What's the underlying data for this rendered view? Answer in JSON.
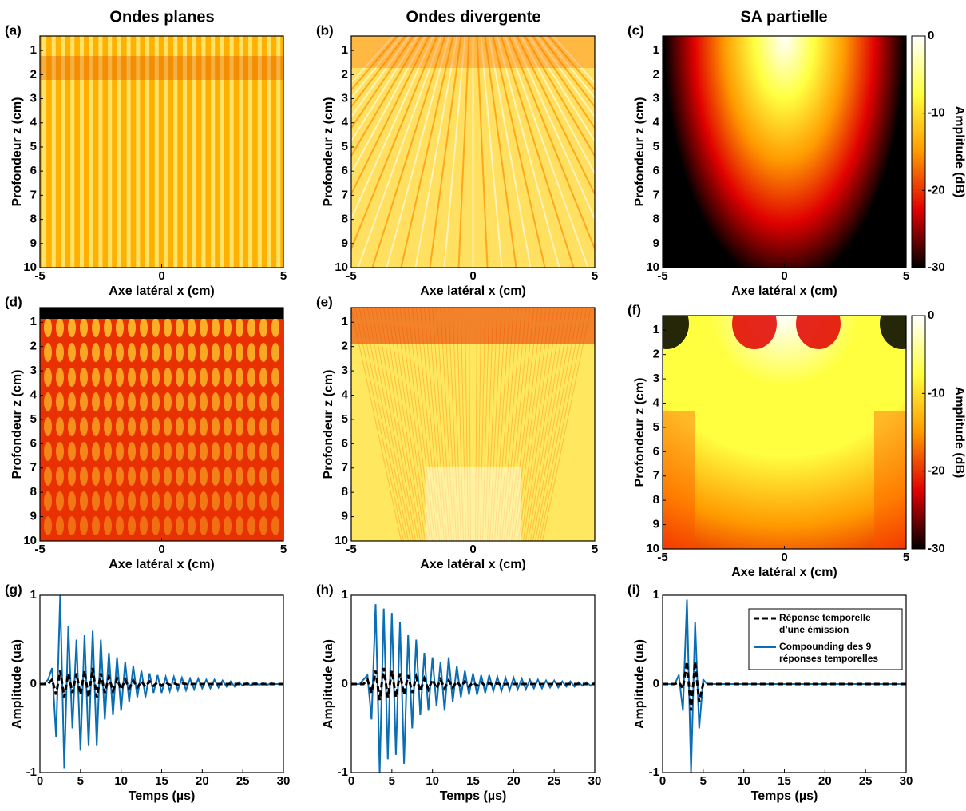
{
  "column_titles": [
    "Ondes planes",
    "Ondes divergente",
    "SA partielle"
  ],
  "chart_data": [
    {
      "type": "heatmap",
      "label": "(a)",
      "xlabel": "Axe latéral x (cm)",
      "ylabel": "Profondeur z (cm)",
      "xlim": [
        -5,
        5
      ],
      "xticks": [
        -5,
        0,
        5
      ],
      "ylim": [
        0.4,
        10
      ],
      "yticks": [
        1,
        2,
        3,
        4,
        5,
        6,
        7,
        8,
        9,
        10
      ]
    },
    {
      "type": "heatmap",
      "label": "(b)",
      "xlabel": "Axe latéral x (cm)",
      "ylabel": "Profondeur z (cm)",
      "xlim": [
        -5,
        5
      ],
      "xticks": [
        -5,
        0,
        5
      ],
      "ylim": [
        0.4,
        10
      ],
      "yticks": [
        1,
        2,
        3,
        4,
        5,
        6,
        7,
        8,
        9,
        10
      ]
    },
    {
      "type": "heatmap",
      "label": "(c)",
      "xlabel": "Axe latéral x (cm)",
      "ylabel": "Profondeur z (cm)",
      "xlim": [
        -5,
        5
      ],
      "xticks": [
        -5,
        0,
        5
      ],
      "ylim": [
        0.4,
        10
      ],
      "yticks": [
        1,
        2,
        3,
        4,
        5,
        6,
        7,
        8,
        9,
        10
      ],
      "colorbar": {
        "label": "Amplitude (dB)",
        "clim": [
          -30,
          0
        ],
        "cticks": [
          0,
          -10,
          -20,
          -30
        ],
        "colormap": [
          "#000000",
          "#e00000",
          "#ff9a00",
          "#ffff40",
          "#ffffff"
        ]
      }
    },
    {
      "type": "heatmap",
      "label": "(d)",
      "xlabel": "Axe latéral x (cm)",
      "ylabel": "Profondeur z (cm)",
      "xlim": [
        -5,
        5
      ],
      "xticks": [
        -5,
        0,
        5
      ],
      "ylim": [
        0.4,
        10
      ],
      "yticks": [
        1,
        2,
        3,
        4,
        5,
        6,
        7,
        8,
        9,
        10
      ]
    },
    {
      "type": "heatmap",
      "label": "(e)",
      "xlabel": "Axe latéral x (cm)",
      "ylabel": "Profondeur z (cm)",
      "xlim": [
        -5,
        5
      ],
      "xticks": [
        -5,
        0,
        5
      ],
      "ylim": [
        0.4,
        10
      ],
      "yticks": [
        1,
        2,
        3,
        4,
        5,
        6,
        7,
        8,
        9,
        10
      ]
    },
    {
      "type": "heatmap",
      "label": "(f)",
      "xlabel": "Axe latéral x (cm)",
      "ylabel": "Profondeur z (cm)",
      "xlim": [
        -5,
        5
      ],
      "xticks": [
        -5,
        0,
        5
      ],
      "ylim": [
        0.4,
        10
      ],
      "yticks": [
        1,
        2,
        3,
        4,
        5,
        6,
        7,
        8,
        9,
        10
      ],
      "colorbar": {
        "label": "Amplitude (dB)",
        "clim": [
          -30,
          0
        ],
        "cticks": [
          0,
          -10,
          -20,
          -30
        ],
        "colormap": [
          "#000000",
          "#e00000",
          "#ff9a00",
          "#ffff40",
          "#ffffff"
        ]
      }
    },
    {
      "type": "line",
      "label": "(g)",
      "xlabel": "Temps (µs)",
      "ylabel": "Amplitude (ua)",
      "xlim": [
        0,
        30
      ],
      "xticks": [
        0,
        5,
        10,
        15,
        20,
        25,
        30
      ],
      "ylim": [
        -1,
        1
      ],
      "yticks": [
        -1,
        0,
        1
      ],
      "x": [
        0,
        0.5,
        1,
        1.5,
        2,
        2.5,
        3,
        3.5,
        4,
        4.5,
        5,
        5.5,
        6,
        6.5,
        7,
        7.5,
        8,
        8.5,
        9,
        9.5,
        10,
        10.5,
        11,
        11.5,
        12,
        12.5,
        13,
        13.5,
        14,
        14.5,
        15,
        15.5,
        16,
        16.5,
        17,
        17.5,
        18,
        18.5,
        19,
        19.5,
        20,
        20.5,
        21,
        21.5,
        22,
        22.5,
        23,
        23.5,
        24,
        24.5,
        25,
        25.5,
        26,
        26.5,
        27,
        27.5,
        28,
        28.5,
        29,
        29.5,
        30
      ],
      "series": [
        {
          "color": "#0a6eb4",
          "linestyle": "solid",
          "values": [
            0,
            0,
            0.05,
            0.18,
            -0.6,
            1,
            -0.95,
            0.65,
            -0.5,
            0.5,
            -0.75,
            0.55,
            -0.7,
            0.6,
            -0.7,
            0.5,
            -0.4,
            0.35,
            -0.35,
            0.3,
            -0.3,
            0.25,
            -0.2,
            0.2,
            -0.15,
            0.15,
            -0.15,
            0.12,
            -0.1,
            0.1,
            -0.1,
            0.08,
            -0.08,
            0.08,
            -0.07,
            0.07,
            -0.07,
            0.06,
            -0.06,
            0.06,
            -0.05,
            0.05,
            -0.05,
            0.05,
            -0.04,
            0.04,
            -0.03,
            0.03,
            -0.03,
            0.02,
            -0.02,
            0.02,
            -0.02,
            0.02,
            -0.01,
            0.01,
            -0.01,
            0.01,
            0,
            0,
            0
          ]
        },
        {
          "color": "#000000",
          "linestyle": "dashed",
          "values": [
            0,
            0,
            0,
            0.05,
            -0.12,
            0.15,
            -0.15,
            0.12,
            -0.1,
            0.12,
            -0.12,
            0.15,
            -0.15,
            0.18,
            -0.15,
            0.12,
            -0.1,
            0.08,
            -0.08,
            0.06,
            -0.06,
            0.05,
            -0.05,
            0.04,
            -0.04,
            0.03,
            -0.03,
            0.03,
            -0.02,
            0.02,
            -0.02,
            0.02,
            -0.01,
            0.01,
            -0.01,
            0.01,
            0,
            0,
            0,
            0,
            0,
            0,
            0,
            0,
            0,
            0,
            0,
            0,
            0,
            0,
            0,
            0,
            0,
            0,
            0,
            0,
            0,
            0,
            0,
            0,
            0
          ]
        }
      ]
    },
    {
      "type": "line",
      "label": "(h)",
      "xlabel": "Temps (µs)",
      "ylabel": "Amplitude (ua)",
      "xlim": [
        0,
        30
      ],
      "xticks": [
        0,
        5,
        10,
        15,
        20,
        25,
        30
      ],
      "ylim": [
        -1,
        1
      ],
      "yticks": [
        -1,
        0,
        1
      ],
      "x": [
        0,
        0.5,
        1,
        1.5,
        2,
        2.5,
        3,
        3.5,
        4,
        4.5,
        5,
        5.5,
        6,
        6.5,
        7,
        7.5,
        8,
        8.5,
        9,
        9.5,
        10,
        10.5,
        11,
        11.5,
        12,
        12.5,
        13,
        13.5,
        14,
        14.5,
        15,
        15.5,
        16,
        16.5,
        17,
        17.5,
        18,
        18.5,
        19,
        19.5,
        20,
        20.5,
        21,
        21.5,
        22,
        22.5,
        23,
        23.5,
        24,
        24.5,
        25,
        25.5,
        26,
        26.5,
        27,
        27.5,
        28,
        28.5,
        29,
        29.5,
        30
      ],
      "series": [
        {
          "color": "#0a6eb4",
          "linestyle": "solid",
          "values": [
            0,
            0,
            0,
            0.05,
            0.1,
            -0.4,
            0.9,
            -1,
            0.85,
            -0.85,
            0.8,
            -0.8,
            0.7,
            -0.9,
            0.55,
            -0.5,
            0.5,
            -0.35,
            0.35,
            -0.3,
            0.3,
            -0.25,
            0.25,
            -0.3,
            0.3,
            -0.2,
            0.2,
            -0.15,
            0.15,
            -0.12,
            0.12,
            -0.12,
            0.1,
            -0.1,
            0.1,
            -0.08,
            0.08,
            -0.08,
            0.07,
            -0.07,
            0.07,
            -0.06,
            0.06,
            -0.06,
            0.05,
            -0.05,
            0.05,
            -0.05,
            0.04,
            -0.04,
            0.04,
            -0.04,
            0.03,
            -0.03,
            0.03,
            -0.03,
            0.02,
            -0.02,
            0.02,
            -0.02,
            0.02
          ]
        },
        {
          "color": "#000000",
          "linestyle": "dashed",
          "values": [
            0,
            0,
            0,
            0,
            0.05,
            -0.1,
            0.15,
            -0.18,
            0.18,
            -0.15,
            0.15,
            -0.15,
            0.12,
            -0.12,
            0.1,
            -0.1,
            0.08,
            -0.08,
            0.06,
            -0.06,
            0.05,
            -0.05,
            0.05,
            -0.05,
            0.04,
            -0.04,
            0.03,
            -0.03,
            0.03,
            -0.03,
            0.02,
            -0.02,
            0.02,
            -0.02,
            0.01,
            -0.01,
            0.01,
            -0.01,
            0,
            0,
            0,
            0,
            0,
            0,
            0,
            0,
            0,
            0,
            0,
            0,
            0,
            0,
            0,
            0,
            0,
            0,
            0,
            0,
            0,
            0,
            0
          ]
        }
      ]
    },
    {
      "type": "line",
      "label": "(i)",
      "xlabel": "Temps (µs)",
      "ylabel": "Amplitude (ua)",
      "xlim": [
        0,
        30
      ],
      "xticks": [
        0,
        5,
        10,
        15,
        20,
        25,
        30
      ],
      "ylim": [
        -1,
        1
      ],
      "yticks": [
        -1,
        0,
        1
      ],
      "legend": "upper right",
      "x": [
        0,
        0.5,
        1,
        1.5,
        2,
        2.5,
        3,
        3.5,
        4,
        4.5,
        5,
        5.5,
        6,
        6.5,
        7,
        7.5,
        8,
        8.5,
        9,
        9.5,
        10,
        10.5,
        11,
        11.5,
        12,
        12.5,
        13,
        13.5,
        14,
        14.5,
        15,
        15.5,
        16,
        16.5,
        17,
        17.5,
        18,
        18.5,
        19,
        19.5,
        20,
        20.5,
        21,
        21.5,
        22,
        22.5,
        23,
        23.5,
        24,
        24.5,
        25,
        25.5,
        26,
        26.5,
        27,
        27.5,
        28,
        28.5,
        29,
        29.5,
        30
      ],
      "series": [
        {
          "name": "Compounding des 9 réponses temporelles",
          "color": "#0a6eb4",
          "linestyle": "solid",
          "values": [
            0,
            0,
            0,
            0,
            0.1,
            -0.3,
            0.95,
            -1,
            0.7,
            -0.5,
            0.05,
            0,
            0,
            0,
            0,
            0,
            0,
            0,
            0,
            0,
            0,
            0,
            0,
            0,
            0,
            0,
            0,
            0,
            0,
            0,
            0,
            0,
            0,
            0,
            0,
            0,
            0,
            0,
            0,
            0,
            0,
            0,
            0,
            0,
            0,
            0,
            0,
            0,
            0,
            0,
            0,
            0,
            0,
            0,
            0,
            0,
            0,
            0,
            0,
            0,
            0
          ]
        },
        {
          "name": "Réponse temporelle d’une émission",
          "color": "#000000",
          "linestyle": "dashed",
          "values": [
            0,
            0,
            0,
            0,
            0.02,
            -0.05,
            0.25,
            -0.3,
            0.25,
            -0.2,
            0,
            0,
            0,
            0,
            0,
            0,
            0,
            0,
            0,
            0,
            0,
            0,
            0,
            0,
            0,
            0,
            0,
            0,
            0,
            0,
            0,
            0,
            0,
            0,
            0,
            0,
            0,
            0,
            0,
            0,
            0,
            0,
            0,
            0,
            0,
            0,
            0,
            0,
            0,
            0,
            0,
            0,
            0,
            0,
            0,
            0,
            0,
            0,
            0,
            0,
            0
          ]
        }
      ]
    }
  ]
}
